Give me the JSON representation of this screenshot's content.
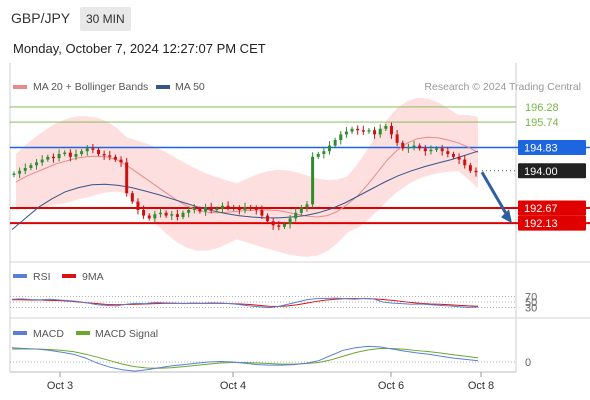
{
  "header": {
    "symbol": "GBP/JPY",
    "timeframe": "30 MIN",
    "datetime": "Monday, October 7, 2024 12:27:07 PM CET"
  },
  "colors": {
    "resistance_line": "#1e66e0",
    "support_line": "#e00000",
    "green_level": "#7ab648",
    "ma20": "#e88a8a",
    "bollinger_fill": "#fdd9d9",
    "ma50": "#34558b",
    "candle_up": "#2e8b2e",
    "candle_down": "#cc1010",
    "rsi": "#5b7fd6",
    "rsi_ma": "#dd1111",
    "macd": "#5b7fd6",
    "macd_signal": "#6aa82e",
    "arrow": "#2e5f9e"
  },
  "legend": {
    "ma20_label": "MA 20 + Bollinger Bands",
    "ma50_label": "MA 50",
    "copyright": "Research © 2024 Trading Central"
  },
  "chart_data": {
    "type": "candlestick",
    "instrument": "GBP/JPY",
    "interval": "30 MIN",
    "ylim": [
      191.6,
      196.6
    ],
    "x_tick_labels": [
      "Oct 3",
      "Oct 4",
      "Oct 6",
      "Oct 8"
    ],
    "levels": [
      {
        "value": 196.28,
        "label": "196.28",
        "kind": "target"
      },
      {
        "value": 195.74,
        "label": "195.74",
        "kind": "target"
      },
      {
        "value": 194.83,
        "label": "194.83",
        "kind": "pivot"
      },
      {
        "value": 194.0,
        "label": "194.00",
        "kind": "last_price"
      },
      {
        "value": 192.67,
        "label": "192.67",
        "kind": "support"
      },
      {
        "value": 192.13,
        "label": "192.13",
        "kind": "support"
      }
    ],
    "close_series": [
      193.9,
      194.0,
      194.1,
      194.2,
      194.3,
      194.4,
      194.5,
      194.45,
      194.6,
      194.65,
      194.5,
      194.6,
      194.7,
      194.8,
      194.75,
      194.6,
      194.55,
      194.5,
      194.4,
      194.3,
      193.2,
      192.9,
      192.6,
      192.4,
      192.3,
      192.45,
      192.5,
      192.4,
      192.45,
      192.35,
      192.5,
      192.6,
      192.65,
      192.55,
      192.7,
      192.6,
      192.65,
      192.75,
      192.7,
      192.65,
      192.6,
      192.7,
      192.65,
      192.6,
      192.4,
      192.2,
      192.05,
      192.0,
      192.1,
      192.3,
      192.5,
      192.7,
      192.8,
      194.5,
      194.6,
      194.7,
      194.9,
      195.1,
      195.3,
      195.4,
      195.5,
      195.45,
      195.4,
      195.45,
      195.3,
      195.5,
      195.6,
      195.3,
      195.0,
      194.8,
      194.85,
      194.9,
      194.8,
      194.7,
      194.75,
      194.8,
      194.7,
      194.6,
      194.5,
      194.4,
      194.2,
      194.0,
      193.95
    ],
    "ma20_series": [
      193.6,
      193.8,
      193.95,
      194.1,
      194.25,
      194.35,
      194.45,
      194.5,
      194.52,
      194.5,
      194.4,
      194.2,
      193.95,
      193.7,
      193.45,
      193.2,
      192.95,
      192.75,
      192.6,
      192.52,
      192.5,
      192.52,
      192.55,
      192.58,
      192.6,
      192.6,
      192.58,
      192.52,
      192.45,
      192.38,
      192.35,
      192.4,
      192.55,
      192.8,
      193.1,
      193.5,
      193.95,
      194.4,
      194.75,
      195.0,
      195.15,
      195.2,
      195.18,
      195.1,
      195.0,
      194.85,
      194.65
    ],
    "ma50_series": [
      191.9,
      192.3,
      192.7,
      193.0,
      193.25,
      193.4,
      193.5,
      193.52,
      193.48,
      193.4,
      193.28,
      193.15,
      193.0,
      192.85,
      192.7,
      192.58,
      192.48,
      192.4,
      192.35,
      192.32,
      192.32,
      192.35,
      192.4,
      192.5,
      192.65,
      192.85,
      193.1,
      193.35,
      193.6,
      193.82,
      194.0,
      194.15,
      194.28,
      194.4,
      194.55,
      194.7
    ],
    "forecast_arrow": {
      "from": 193.95,
      "to": 192.2
    },
    "rsi": {
      "name": "RSI",
      "ma_name": "9MA",
      "ylim": [
        0,
        100
      ],
      "levels": [
        70,
        50,
        30
      ],
      "series": [
        60,
        61,
        59,
        58,
        60,
        57,
        55,
        52,
        46,
        40,
        38,
        36,
        42,
        45,
        44,
        48,
        47,
        46,
        44,
        46,
        45,
        47,
        46,
        44,
        40,
        36,
        33,
        30,
        34,
        42,
        50,
        58,
        62,
        63,
        64,
        62,
        60,
        63,
        61,
        50,
        46,
        44,
        42,
        43,
        40,
        38,
        36,
        33,
        31,
        32
      ],
      "ma_series": [
        58,
        58,
        57,
        57,
        56,
        55,
        53,
        50,
        47,
        44,
        41,
        40,
        41,
        42,
        43,
        44,
        45,
        45,
        45,
        45,
        45,
        45,
        45,
        44,
        43,
        41,
        38,
        35,
        34,
        36,
        40,
        46,
        52,
        57,
        60,
        62,
        62,
        62,
        61,
        59,
        56,
        52,
        48,
        45,
        43,
        42,
        40,
        38,
        36,
        35
      ]
    },
    "macd": {
      "name": "MACD",
      "signal_name": "MACD Signal",
      "levels": [
        0
      ],
      "series": [
        0.55,
        0.52,
        0.5,
        0.45,
        0.38,
        0.3,
        0.15,
        -0.05,
        -0.2,
        -0.3,
        -0.35,
        -0.3,
        -0.22,
        -0.15,
        -0.1,
        -0.05,
        0.0,
        0.02,
        0.0,
        -0.05,
        -0.1,
        -0.12,
        -0.12,
        -0.1,
        -0.05,
        0.05,
        0.25,
        0.45,
        0.55,
        0.6,
        0.58,
        0.5,
        0.42,
        0.35,
        0.3,
        0.22,
        0.15,
        0.1,
        0.05
      ],
      "signal_series": [
        0.5,
        0.5,
        0.5,
        0.48,
        0.45,
        0.4,
        0.3,
        0.18,
        0.05,
        -0.08,
        -0.18,
        -0.23,
        -0.24,
        -0.22,
        -0.18,
        -0.13,
        -0.08,
        -0.04,
        -0.02,
        -0.02,
        -0.04,
        -0.06,
        -0.08,
        -0.08,
        -0.06,
        -0.02,
        0.08,
        0.22,
        0.36,
        0.46,
        0.52,
        0.52,
        0.49,
        0.44,
        0.4,
        0.34,
        0.28,
        0.22,
        0.16
      ],
      "zero_label": "0"
    }
  }
}
